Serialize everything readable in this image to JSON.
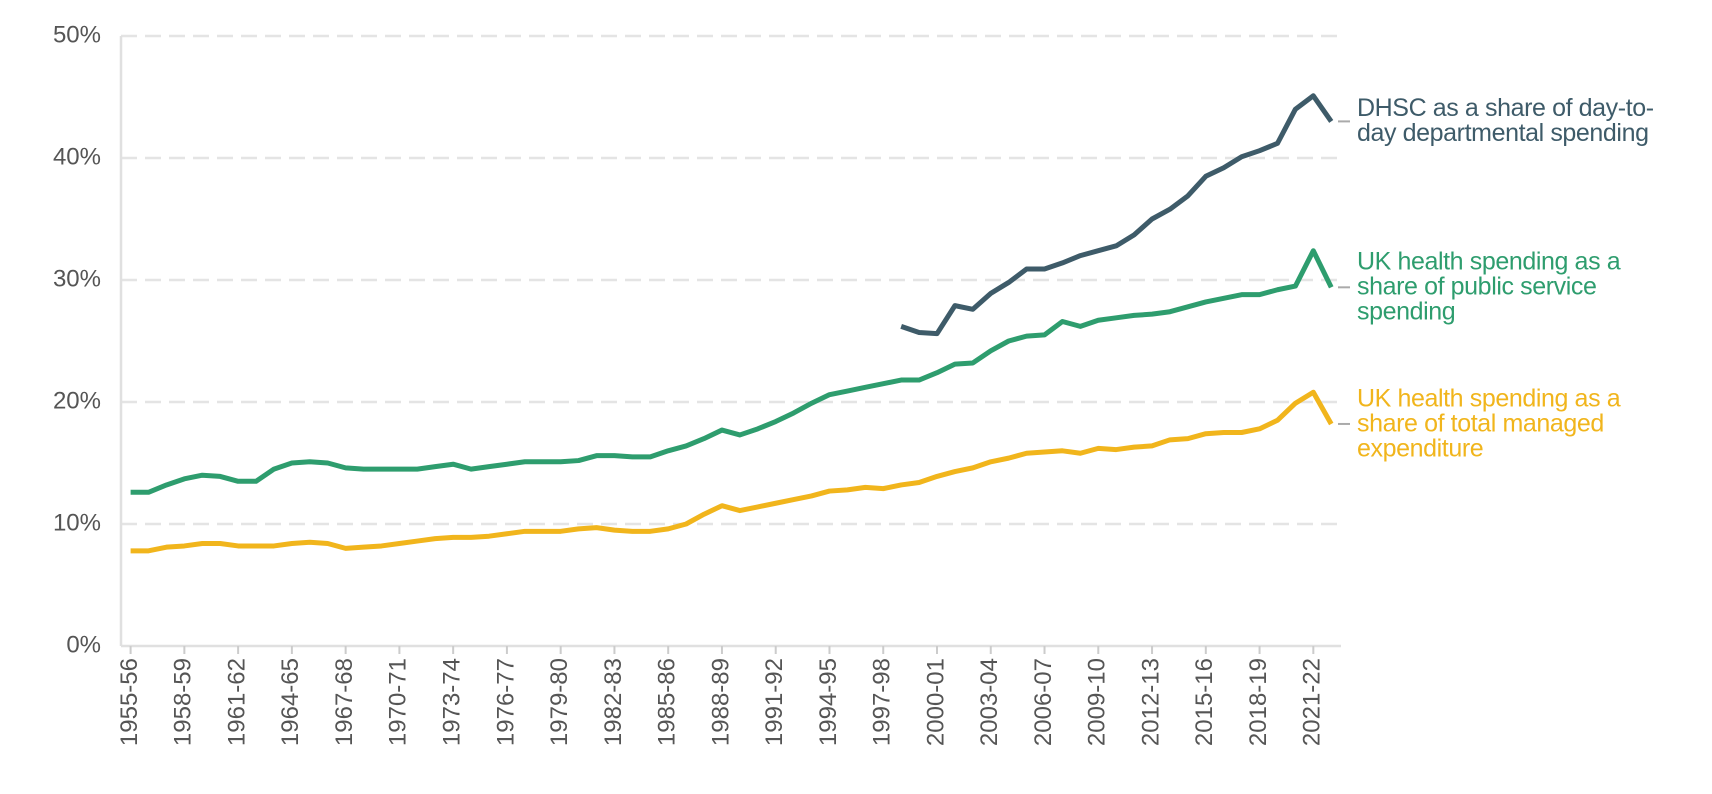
{
  "chart_data": {
    "type": "line",
    "categories": [
      "1955-56",
      null,
      null,
      "1958-59",
      null,
      null,
      "1961-62",
      null,
      null,
      "1964-65",
      null,
      null,
      "1967-68",
      null,
      null,
      "1970-71",
      null,
      null,
      "1973-74",
      null,
      null,
      "1976-77",
      null,
      null,
      "1979-80",
      null,
      null,
      "1982-83",
      null,
      null,
      "1985-86",
      null,
      null,
      "1988-89",
      null,
      null,
      "1991-92",
      null,
      null,
      "1994-95",
      null,
      null,
      "1997-98",
      null,
      null,
      "2000-01",
      null,
      null,
      "2003-04",
      null,
      null,
      "2006-07",
      null,
      null,
      "2009-10",
      null,
      null,
      "2012-13",
      null,
      null,
      "2015-16",
      null,
      null,
      "2018-19",
      null,
      null,
      "2021-22",
      null
    ],
    "series": [
      {
        "name": "DHSC as a share of day-to-day departmental spending",
        "color": "#3e5b69",
        "values": [
          null,
          null,
          null,
          null,
          null,
          null,
          null,
          null,
          null,
          null,
          null,
          null,
          null,
          null,
          null,
          null,
          null,
          null,
          null,
          null,
          null,
          null,
          null,
          null,
          null,
          null,
          null,
          null,
          null,
          null,
          null,
          null,
          null,
          null,
          null,
          null,
          null,
          null,
          null,
          null,
          null,
          null,
          null,
          26.2,
          25.7,
          25.6,
          27.9,
          27.6,
          28.9,
          29.8,
          30.9,
          30.9,
          31.4,
          32.0,
          32.4,
          32.8,
          33.7,
          35.0,
          35.8,
          36.9,
          38.5,
          39.2,
          40.1,
          40.6,
          41.2,
          44.0,
          45.1,
          43.0
        ]
      },
      {
        "name": "UK health spending as a share of public service spending",
        "color": "#2e9d6e",
        "values": [
          12.6,
          12.6,
          13.2,
          13.7,
          14.0,
          13.9,
          13.5,
          13.5,
          14.5,
          15.0,
          15.1,
          15.0,
          14.6,
          14.5,
          14.5,
          14.5,
          14.5,
          14.7,
          14.9,
          14.5,
          14.7,
          14.9,
          15.1,
          15.1,
          15.1,
          15.2,
          15.6,
          15.6,
          15.5,
          15.5,
          16.0,
          16.4,
          17.0,
          17.7,
          17.3,
          17.8,
          18.4,
          19.1,
          19.9,
          20.6,
          20.9,
          21.2,
          21.5,
          21.8,
          21.8,
          22.4,
          23.1,
          23.2,
          24.2,
          25.0,
          25.4,
          25.5,
          26.6,
          26.2,
          26.7,
          26.9,
          27.1,
          27.2,
          27.4,
          27.8,
          28.2,
          28.5,
          28.8,
          28.8,
          29.2,
          29.5,
          32.4,
          29.4
        ]
      },
      {
        "name": "UK health spending as a share of total managed expenditure",
        "color": "#f1b51c",
        "values": [
          7.8,
          7.8,
          8.1,
          8.2,
          8.4,
          8.4,
          8.2,
          8.2,
          8.2,
          8.4,
          8.5,
          8.4,
          8.0,
          8.1,
          8.2,
          8.4,
          8.6,
          8.8,
          8.9,
          8.9,
          9.0,
          9.2,
          9.4,
          9.4,
          9.4,
          9.6,
          9.7,
          9.5,
          9.4,
          9.4,
          9.6,
          10.0,
          10.8,
          11.5,
          11.1,
          11.4,
          11.7,
          12.0,
          12.3,
          12.7,
          12.8,
          13.0,
          12.9,
          13.2,
          13.4,
          13.9,
          14.3,
          14.6,
          15.1,
          15.4,
          15.8,
          15.9,
          16.0,
          15.8,
          16.2,
          16.1,
          16.3,
          16.4,
          16.9,
          17.0,
          17.4,
          17.5,
          17.5,
          17.8,
          18.5,
          19.9,
          20.8,
          18.2
        ]
      }
    ],
    "ylim": [
      0,
      50
    ],
    "yticks": [
      {
        "value": 0,
        "label": "0%"
      },
      {
        "value": 10,
        "label": "10%"
      },
      {
        "value": 20,
        "label": "20%"
      },
      {
        "value": 30,
        "label": "30%"
      },
      {
        "value": 40,
        "label": "40%"
      },
      {
        "value": 50,
        "label": "50%"
      }
    ],
    "grid": true
  }
}
